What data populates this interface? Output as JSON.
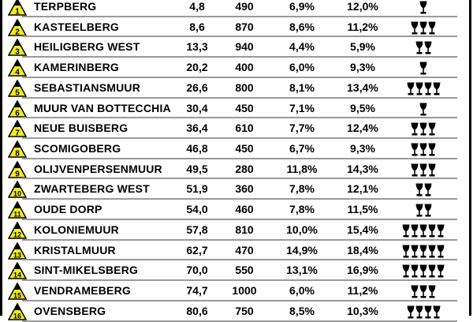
{
  "colors": {
    "triangle": "#f2ec1c",
    "separator": "#9a9a9a",
    "text": "#000000"
  },
  "icons": {
    "climb_marker": "mountain-triangle-icon",
    "rating": "wine-glass-icon"
  },
  "climbs": [
    {
      "number": "1",
      "name": "TERPBERG",
      "km": "4,8",
      "length": "490",
      "avg": "6,9%",
      "max": "12,0%",
      "glasses": 1
    },
    {
      "number": "2",
      "name": "KASTEELBERG",
      "km": "8,6",
      "length": "870",
      "avg": "8,6%",
      "max": "11,2%",
      "glasses": 3
    },
    {
      "number": "3",
      "name": "HEILIGBERG WEST",
      "km": "13,3",
      "length": "940",
      "avg": "4,4%",
      "max": "5,9%",
      "glasses": 2
    },
    {
      "number": "4",
      "name": "KAMERINBERG",
      "km": "20,2",
      "length": "400",
      "avg": "6,0%",
      "max": "9,3%",
      "glasses": 1
    },
    {
      "number": "5",
      "name": "SEBASTIANSMUUR",
      "km": "26,6",
      "length": "800",
      "avg": "8,1%",
      "max": "13,4%",
      "glasses": 4
    },
    {
      "number": "6",
      "name": "MUUR VAN BOTTECCHIA",
      "km": "30,4",
      "length": "450",
      "avg": "7,1%",
      "max": "9,5%",
      "glasses": 1
    },
    {
      "number": "7",
      "name": "NEUE BUISBERG",
      "km": "36,4",
      "length": "610",
      "avg": "7,7%",
      "max": "12,4%",
      "glasses": 3
    },
    {
      "number": "8",
      "name": "SCOMIGOBERG",
      "km": "46,8",
      "length": "450",
      "avg": "6,7%",
      "max": "9,3%",
      "glasses": 3
    },
    {
      "number": "9",
      "name": "OLIJVENPERSENMUUR",
      "km": "49,5",
      "length": "280",
      "avg": "11,8%",
      "max": "14,3%",
      "glasses": 3
    },
    {
      "number": "10",
      "name": "ZWARTEBERG WEST",
      "km": "51,9",
      "length": "360",
      "avg": "7,8%",
      "max": "12,1%",
      "glasses": 2
    },
    {
      "number": "11",
      "name": "OUDE DORP",
      "km": "54,0",
      "length": "460",
      "avg": "7,8%",
      "max": "11,5%",
      "glasses": 2
    },
    {
      "number": "12",
      "name": "KOLONIEMUUR",
      "km": "57,8",
      "length": "810",
      "avg": "10,0%",
      "max": "15,4%",
      "glasses": 5
    },
    {
      "number": "13",
      "name": "KRISTALMUUR",
      "km": "62,7",
      "length": "470",
      "avg": "14,9%",
      "max": "18,4%",
      "glasses": 5
    },
    {
      "number": "14",
      "name": "SINT-MIKELSBERG",
      "km": "70,0",
      "length": "550",
      "avg": "13,1%",
      "max": "16,9%",
      "glasses": 5
    },
    {
      "number": "15",
      "name": "VENDRAMEBERG",
      "km": "74,7",
      "length": "1000",
      "avg": "6,0%",
      "max": "11,2%",
      "glasses": 3
    },
    {
      "number": "16",
      "name": "OVENSBERG",
      "km": "80,6",
      "length": "750",
      "avg": "8,5%",
      "max": "10,3%",
      "glasses": 4
    }
  ]
}
